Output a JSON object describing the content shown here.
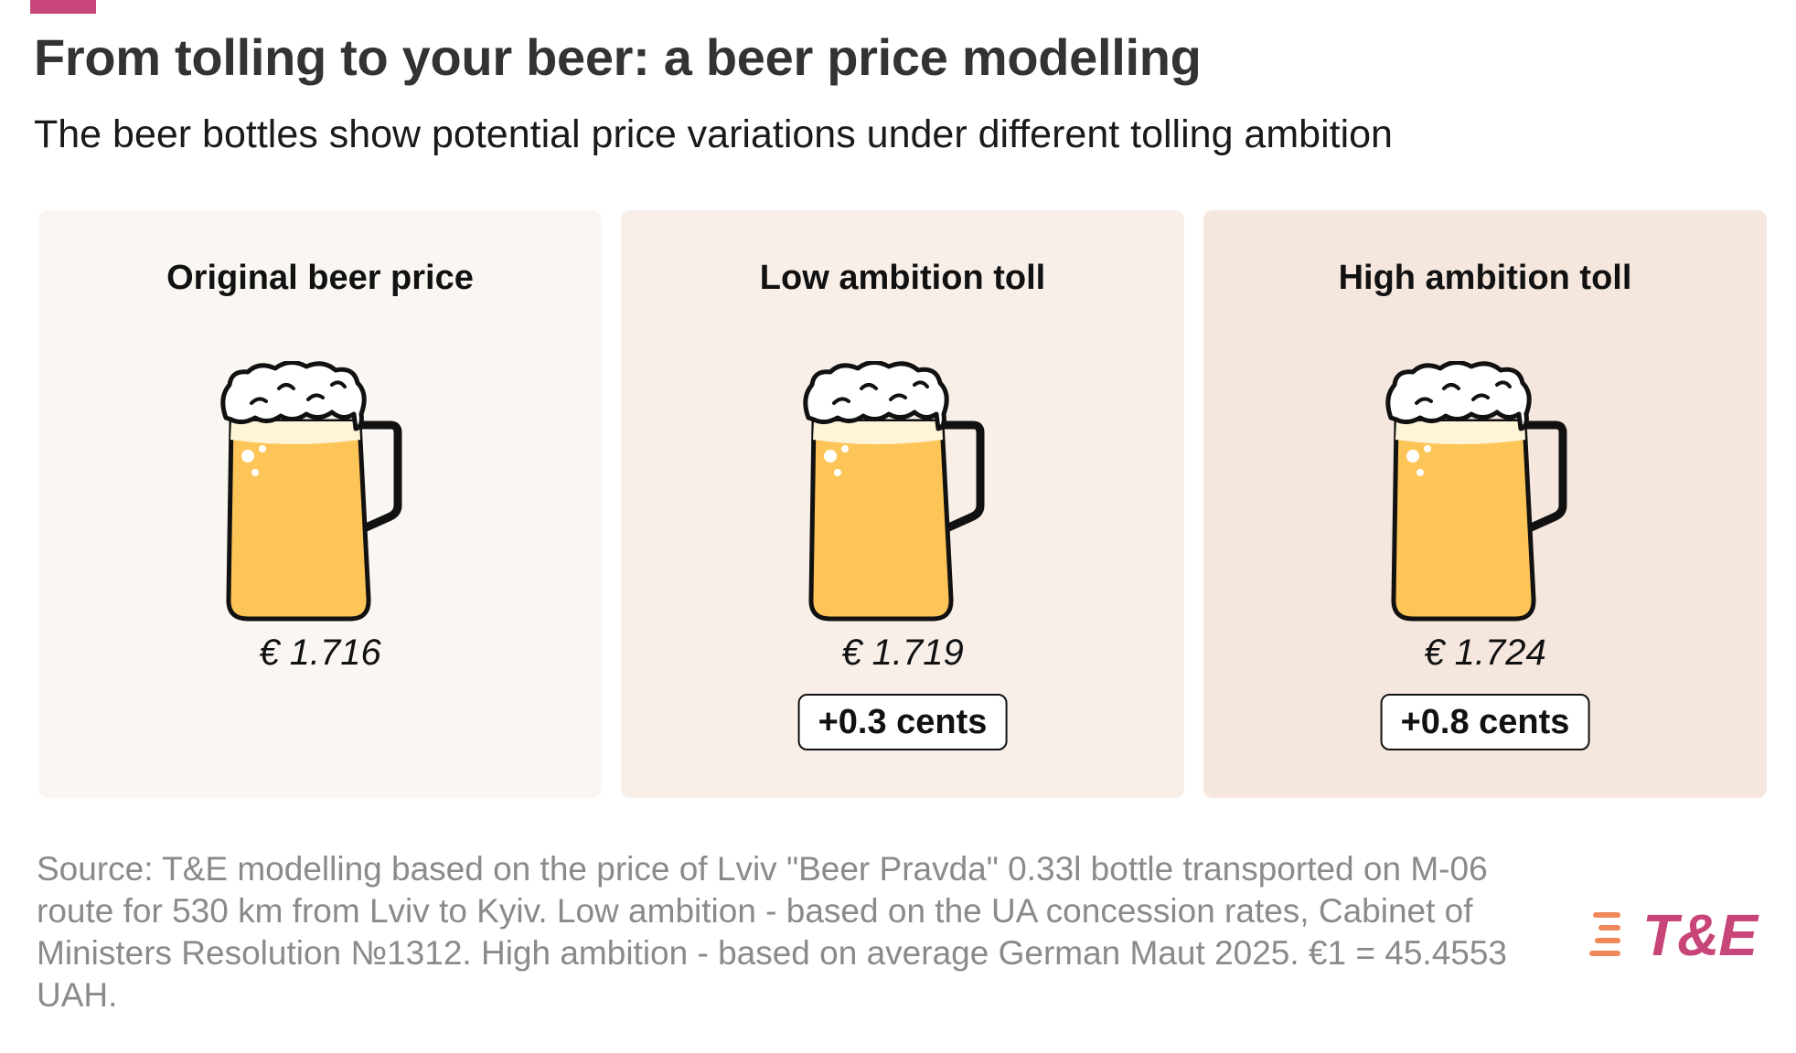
{
  "header": {
    "title": "From tolling to your beer: a beer price modelling",
    "subtitle": "The beer bottles show potential price variations under different tolling ambition"
  },
  "panels": [
    {
      "title": "Original beer price",
      "price": "€ 1.716",
      "delta": "",
      "icon": "beer-mug-icon",
      "bg": "#faf6f2"
    },
    {
      "title": "Low ambition toll",
      "price": "€ 1.719",
      "delta": "+0.3 cents",
      "icon": "beer-mug-icon",
      "bg": "#f8efe9"
    },
    {
      "title": "High ambition toll",
      "price": "€ 1.724",
      "delta": "+0.8 cents",
      "icon": "beer-mug-icon",
      "bg": "#f5e7de"
    }
  ],
  "source": "Source: T&E modelling based on the price of Lviv \"Beer Pravda\" 0.33l bottle transported on M-06 route for 530 km from Lviv to Kyiv. Low ambition - based on the UA concession rates, Cabinet of Ministers Resolution №1312. High ambition - based on average German Maut 2025. €1 = 45.4553 UAH.",
  "logo": {
    "text": "T&E",
    "color": "#c8457a",
    "stripe_color": "#f0885a"
  },
  "colors": {
    "accent": "#c8457a",
    "beer": "#fdc557",
    "foam": "#ffffff",
    "outline": "#111111"
  }
}
